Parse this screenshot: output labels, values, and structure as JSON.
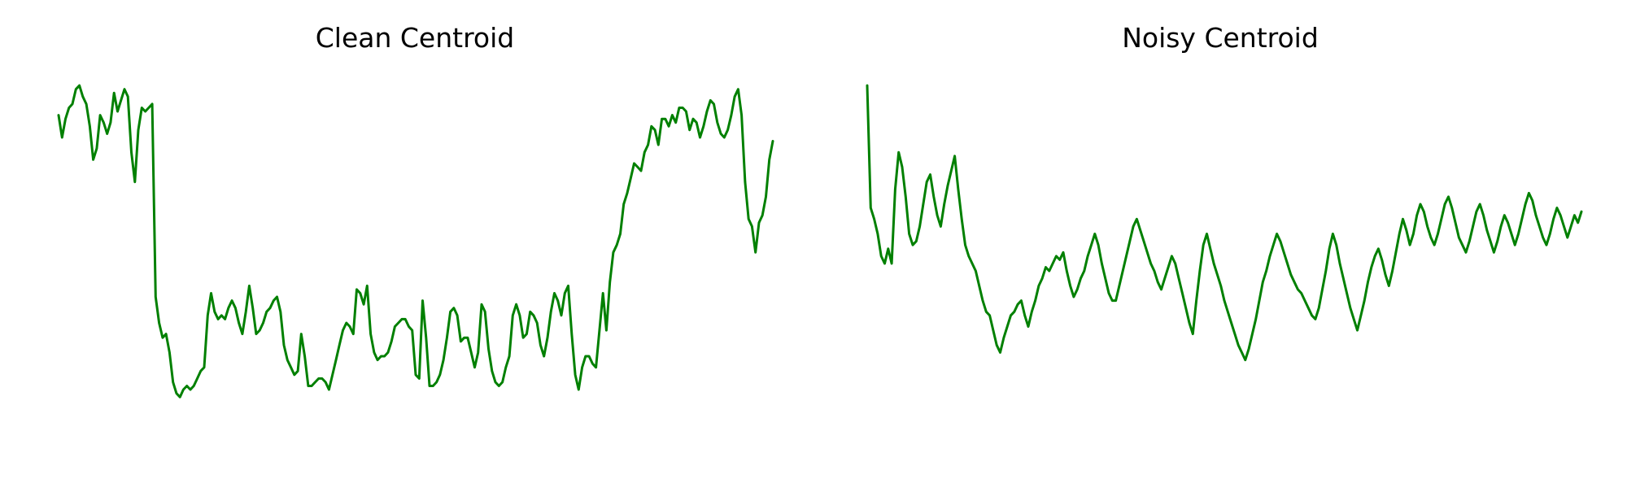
{
  "figure": {
    "background": "#ffffff",
    "line_color": "#008000"
  },
  "chart_data": [
    {
      "type": "line",
      "title": "Clean Centroid",
      "xlabel": "",
      "ylabel": "",
      "axes": "off",
      "grid": false,
      "legend": "none",
      "xlim": [
        0,
        199
      ],
      "ylim": [
        0,
        1
      ],
      "series": [
        {
          "color": "#008000",
          "values": [
            0.9,
            0.84,
            0.89,
            0.92,
            0.93,
            0.97,
            0.98,
            0.95,
            0.93,
            0.87,
            0.78,
            0.81,
            0.9,
            0.88,
            0.85,
            0.88,
            0.96,
            0.91,
            0.94,
            0.97,
            0.95,
            0.8,
            0.72,
            0.86,
            0.92,
            0.91,
            0.92,
            0.93,
            0.41,
            0.34,
            0.3,
            0.31,
            0.26,
            0.18,
            0.15,
            0.14,
            0.16,
            0.17,
            0.16,
            0.17,
            0.19,
            0.21,
            0.22,
            0.36,
            0.42,
            0.37,
            0.35,
            0.36,
            0.35,
            0.38,
            0.4,
            0.38,
            0.34,
            0.31,
            0.37,
            0.44,
            0.38,
            0.31,
            0.32,
            0.34,
            0.37,
            0.38,
            0.4,
            0.41,
            0.37,
            0.28,
            0.24,
            0.22,
            0.2,
            0.21,
            0.31,
            0.25,
            0.17,
            0.17,
            0.18,
            0.19,
            0.19,
            0.18,
            0.16,
            0.2,
            0.24,
            0.28,
            0.32,
            0.34,
            0.33,
            0.31,
            0.43,
            0.42,
            0.39,
            0.44,
            0.31,
            0.26,
            0.24,
            0.25,
            0.25,
            0.26,
            0.29,
            0.33,
            0.34,
            0.35,
            0.35,
            0.33,
            0.32,
            0.2,
            0.19,
            0.4,
            0.3,
            0.17,
            0.17,
            0.18,
            0.2,
            0.24,
            0.3,
            0.37,
            0.38,
            0.36,
            0.29,
            0.3,
            0.3,
            0.26,
            0.22,
            0.26,
            0.39,
            0.37,
            0.27,
            0.21,
            0.18,
            0.17,
            0.18,
            0.22,
            0.25,
            0.36,
            0.39,
            0.36,
            0.3,
            0.31,
            0.37,
            0.36,
            0.34,
            0.28,
            0.25,
            0.3,
            0.37,
            0.42,
            0.4,
            0.36,
            0.42,
            0.44,
            0.31,
            0.2,
            0.16,
            0.22,
            0.25,
            0.25,
            0.23,
            0.22,
            0.32,
            0.42,
            0.32,
            0.45,
            0.53,
            0.55,
            0.58,
            0.66,
            0.69,
            0.73,
            0.77,
            0.76,
            0.75,
            0.8,
            0.82,
            0.87,
            0.86,
            0.82,
            0.89,
            0.89,
            0.87,
            0.9,
            0.88,
            0.92,
            0.92,
            0.91,
            0.86,
            0.89,
            0.88,
            0.84,
            0.87,
            0.91,
            0.94,
            0.93,
            0.88,
            0.85,
            0.84,
            0.86,
            0.9,
            0.95,
            0.97,
            0.9,
            0.72,
            0.62,
            0.6,
            0.53,
            0.61,
            0.63,
            0.68,
            0.78,
            0.83
          ]
        }
      ]
    },
    {
      "type": "line",
      "title": "Noisy Centroid",
      "xlabel": "",
      "ylabel": "",
      "axes": "off",
      "grid": false,
      "legend": "none",
      "xlim": [
        0,
        199
      ],
      "ylim": [
        0,
        1
      ],
      "series": [
        {
          "color": "#008000",
          "values": [
            0.98,
            0.65,
            0.62,
            0.58,
            0.52,
            0.5,
            0.54,
            0.5,
            0.7,
            0.8,
            0.76,
            0.68,
            0.58,
            0.55,
            0.56,
            0.6,
            0.66,
            0.72,
            0.74,
            0.68,
            0.63,
            0.6,
            0.66,
            0.71,
            0.75,
            0.79,
            0.7,
            0.62,
            0.55,
            0.52,
            0.5,
            0.48,
            0.44,
            0.4,
            0.37,
            0.36,
            0.32,
            0.28,
            0.26,
            0.3,
            0.33,
            0.36,
            0.37,
            0.39,
            0.4,
            0.36,
            0.33,
            0.37,
            0.4,
            0.44,
            0.46,
            0.49,
            0.48,
            0.5,
            0.52,
            0.51,
            0.53,
            0.48,
            0.44,
            0.41,
            0.43,
            0.46,
            0.48,
            0.52,
            0.55,
            0.58,
            0.55,
            0.5,
            0.46,
            0.42,
            0.4,
            0.4,
            0.44,
            0.48,
            0.52,
            0.56,
            0.6,
            0.62,
            0.59,
            0.56,
            0.53,
            0.5,
            0.48,
            0.45,
            0.43,
            0.46,
            0.49,
            0.52,
            0.5,
            0.46,
            0.42,
            0.38,
            0.34,
            0.31,
            0.4,
            0.48,
            0.55,
            0.58,
            0.54,
            0.5,
            0.47,
            0.44,
            0.4,
            0.37,
            0.34,
            0.31,
            0.28,
            0.26,
            0.24,
            0.27,
            0.31,
            0.35,
            0.4,
            0.45,
            0.48,
            0.52,
            0.55,
            0.58,
            0.56,
            0.53,
            0.5,
            0.47,
            0.45,
            0.43,
            0.42,
            0.4,
            0.38,
            0.36,
            0.35,
            0.38,
            0.43,
            0.48,
            0.54,
            0.58,
            0.55,
            0.5,
            0.46,
            0.42,
            0.38,
            0.35,
            0.32,
            0.36,
            0.4,
            0.45,
            0.49,
            0.52,
            0.54,
            0.51,
            0.47,
            0.44,
            0.48,
            0.53,
            0.58,
            0.62,
            0.59,
            0.55,
            0.58,
            0.63,
            0.66,
            0.64,
            0.6,
            0.57,
            0.55,
            0.58,
            0.62,
            0.66,
            0.68,
            0.65,
            0.61,
            0.57,
            0.55,
            0.53,
            0.56,
            0.6,
            0.64,
            0.66,
            0.63,
            0.59,
            0.56,
            0.53,
            0.56,
            0.6,
            0.63,
            0.61,
            0.58,
            0.55,
            0.58,
            0.62,
            0.66,
            0.69,
            0.67,
            0.63,
            0.6,
            0.57,
            0.55,
            0.58,
            0.62,
            0.65,
            0.63,
            0.6,
            0.57,
            0.6,
            0.63,
            0.61,
            0.64
          ]
        }
      ]
    }
  ]
}
